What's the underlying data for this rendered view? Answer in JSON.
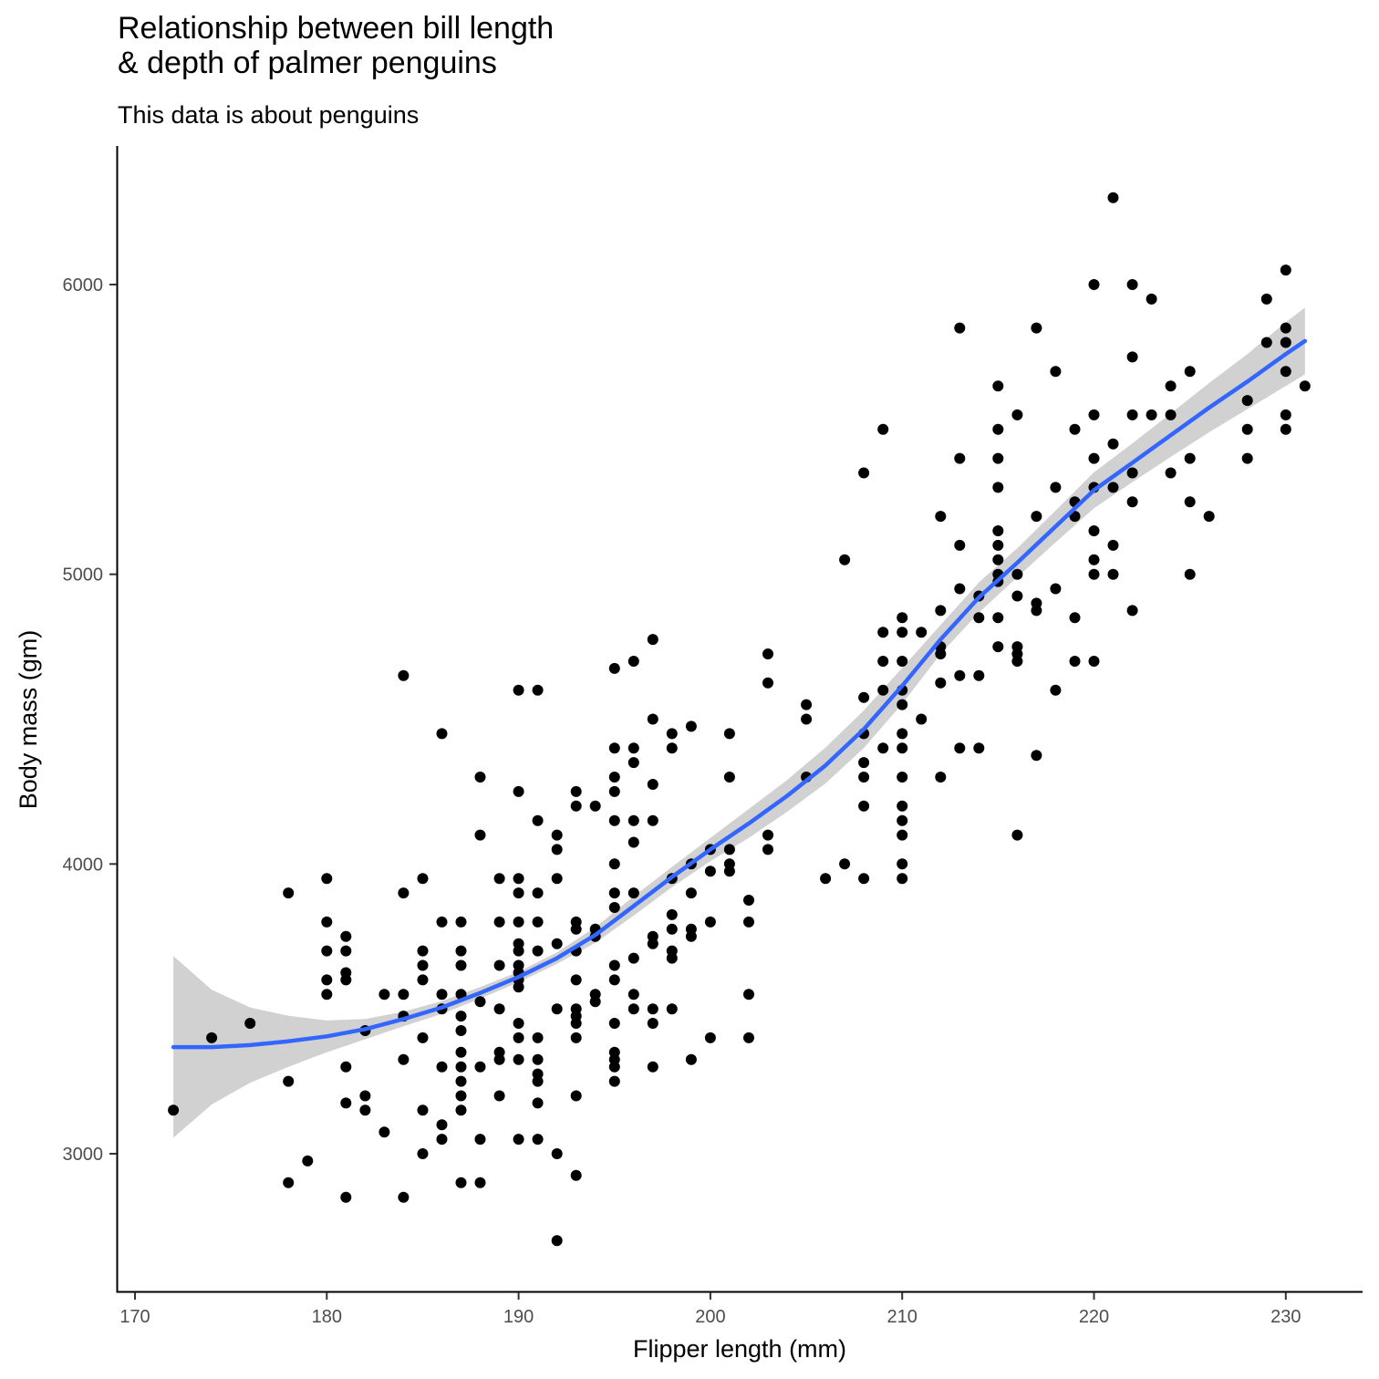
{
  "chart_data": {
    "type": "scatter",
    "title": "Relationship between bill length\n& depth of palmer penguins",
    "subtitle": "This data is about penguins",
    "xlabel": "Flipper length (mm)",
    "ylabel": "Body mass (gm)",
    "xlim": [
      169,
      234
    ],
    "ylim": [
      2550,
      6500
    ],
    "xticks": [
      170,
      180,
      190,
      200,
      210,
      220,
      230
    ],
    "yticks": [
      3000,
      4000,
      5000,
      6000
    ],
    "grid": false,
    "legend": "none",
    "colors": {
      "points": "#000000",
      "smooth": "#3366FF",
      "band": "#BEBEBE"
    },
    "points": [
      [
        172,
        3150
      ],
      [
        174,
        3400
      ],
      [
        176,
        3450
      ],
      [
        178,
        3900
      ],
      [
        178,
        3250
      ],
      [
        178,
        2900
      ],
      [
        179,
        2975
      ],
      [
        180,
        3950
      ],
      [
        180,
        3800
      ],
      [
        180,
        3700
      ],
      [
        180,
        3600
      ],
      [
        180,
        3550
      ],
      [
        181,
        3750
      ],
      [
        181,
        3700
      ],
      [
        181,
        3625
      ],
      [
        181,
        3600
      ],
      [
        181,
        3300
      ],
      [
        181,
        3175
      ],
      [
        181,
        2850
      ],
      [
        182,
        3425
      ],
      [
        182,
        3200
      ],
      [
        182,
        3150
      ],
      [
        183,
        3550
      ],
      [
        183,
        3075
      ],
      [
        184,
        4650
      ],
      [
        184,
        3900
      ],
      [
        184,
        3550
      ],
      [
        184,
        3475
      ],
      [
        184,
        3325
      ],
      [
        184,
        2850
      ],
      [
        185,
        3950
      ],
      [
        185,
        3700
      ],
      [
        185,
        3650
      ],
      [
        185,
        3600
      ],
      [
        185,
        3400
      ],
      [
        185,
        3150
      ],
      [
        185,
        3000
      ],
      [
        186,
        4450
      ],
      [
        186,
        3800
      ],
      [
        186,
        3550
      ],
      [
        186,
        3500
      ],
      [
        186,
        3300
      ],
      [
        186,
        3100
      ],
      [
        186,
        3050
      ],
      [
        187,
        3800
      ],
      [
        187,
        3700
      ],
      [
        187,
        3650
      ],
      [
        187,
        3550
      ],
      [
        187,
        3475
      ],
      [
        187,
        3425
      ],
      [
        187,
        3350
      ],
      [
        187,
        3300
      ],
      [
        187,
        3250
      ],
      [
        187,
        3200
      ],
      [
        187,
        3150
      ],
      [
        187,
        2900
      ],
      [
        188,
        4300
      ],
      [
        188,
        4100
      ],
      [
        188,
        3525
      ],
      [
        188,
        3300
      ],
      [
        188,
        3050
      ],
      [
        188,
        2900
      ],
      [
        189,
        3950
      ],
      [
        189,
        3800
      ],
      [
        189,
        3650
      ],
      [
        189,
        3500
      ],
      [
        189,
        3350
      ],
      [
        189,
        3325
      ],
      [
        189,
        3200
      ],
      [
        190,
        4600
      ],
      [
        190,
        4250
      ],
      [
        190,
        3950
      ],
      [
        190,
        3900
      ],
      [
        190,
        3800
      ],
      [
        190,
        3725
      ],
      [
        190,
        3700
      ],
      [
        190,
        3650
      ],
      [
        190,
        3625
      ],
      [
        190,
        3600
      ],
      [
        190,
        3575
      ],
      [
        190,
        3450
      ],
      [
        190,
        3400
      ],
      [
        190,
        3325
      ],
      [
        190,
        3050
      ],
      [
        191,
        4600
      ],
      [
        191,
        4150
      ],
      [
        191,
        3900
      ],
      [
        191,
        3800
      ],
      [
        191,
        3700
      ],
      [
        191,
        3400
      ],
      [
        191,
        3325
      ],
      [
        191,
        3275
      ],
      [
        191,
        3250
      ],
      [
        191,
        3175
      ],
      [
        191,
        3050
      ],
      [
        192,
        4100
      ],
      [
        192,
        4050
      ],
      [
        192,
        3950
      ],
      [
        192,
        3725
      ],
      [
        192,
        3500
      ],
      [
        192,
        3000
      ],
      [
        192,
        2700
      ],
      [
        193,
        4250
      ],
      [
        193,
        4200
      ],
      [
        193,
        3800
      ],
      [
        193,
        3775
      ],
      [
        193,
        3700
      ],
      [
        193,
        3600
      ],
      [
        193,
        3500
      ],
      [
        193,
        3475
      ],
      [
        193,
        3450
      ],
      [
        193,
        3400
      ],
      [
        193,
        3200
      ],
      [
        193,
        2925
      ],
      [
        194,
        4200
      ],
      [
        194,
        3775
      ],
      [
        194,
        3750
      ],
      [
        194,
        3550
      ],
      [
        194,
        3525
      ],
      [
        195,
        4675
      ],
      [
        195,
        4400
      ],
      [
        195,
        4300
      ],
      [
        195,
        4250
      ],
      [
        195,
        4150
      ],
      [
        195,
        4000
      ],
      [
        195,
        3900
      ],
      [
        195,
        3850
      ],
      [
        195,
        3650
      ],
      [
        195,
        3600
      ],
      [
        195,
        3450
      ],
      [
        195,
        3350
      ],
      [
        195,
        3325
      ],
      [
        195,
        3300
      ],
      [
        195,
        3250
      ],
      [
        196,
        4700
      ],
      [
        196,
        4400
      ],
      [
        196,
        4350
      ],
      [
        196,
        4150
      ],
      [
        196,
        4075
      ],
      [
        196,
        3900
      ],
      [
        196,
        3675
      ],
      [
        196,
        3550
      ],
      [
        196,
        3500
      ],
      [
        197,
        4775
      ],
      [
        197,
        4500
      ],
      [
        197,
        4275
      ],
      [
        197,
        4150
      ],
      [
        197,
        3750
      ],
      [
        197,
        3725
      ],
      [
        197,
        3500
      ],
      [
        197,
        3450
      ],
      [
        197,
        3300
      ],
      [
        198,
        4450
      ],
      [
        198,
        4400
      ],
      [
        198,
        3950
      ],
      [
        198,
        3825
      ],
      [
        198,
        3775
      ],
      [
        198,
        3700
      ],
      [
        198,
        3675
      ],
      [
        198,
        3500
      ],
      [
        199,
        4475
      ],
      [
        199,
        4000
      ],
      [
        199,
        3900
      ],
      [
        199,
        3775
      ],
      [
        199,
        3750
      ],
      [
        199,
        3325
      ],
      [
        200,
        4050
      ],
      [
        200,
        3975
      ],
      [
        200,
        3800
      ],
      [
        200,
        3400
      ],
      [
        201,
        4450
      ],
      [
        201,
        4300
      ],
      [
        201,
        4050
      ],
      [
        201,
        4000
      ],
      [
        201,
        3975
      ],
      [
        202,
        3875
      ],
      [
        202,
        3800
      ],
      [
        202,
        3550
      ],
      [
        202,
        3400
      ],
      [
        203,
        4725
      ],
      [
        203,
        4625
      ],
      [
        203,
        4100
      ],
      [
        203,
        4050
      ],
      [
        205,
        4550
      ],
      [
        205,
        4500
      ],
      [
        205,
        4300
      ],
      [
        206,
        3950
      ],
      [
        207,
        5050
      ],
      [
        207,
        4000
      ],
      [
        208,
        5350
      ],
      [
        208,
        4575
      ],
      [
        208,
        4450
      ],
      [
        208,
        4350
      ],
      [
        208,
        4300
      ],
      [
        208,
        4200
      ],
      [
        208,
        3950
      ],
      [
        209,
        5500
      ],
      [
        209,
        4800
      ],
      [
        209,
        4700
      ],
      [
        209,
        4600
      ],
      [
        209,
        4400
      ],
      [
        210,
        4850
      ],
      [
        210,
        4800
      ],
      [
        210,
        4700
      ],
      [
        210,
        4600
      ],
      [
        210,
        4550
      ],
      [
        210,
        4450
      ],
      [
        210,
        4400
      ],
      [
        210,
        4300
      ],
      [
        210,
        4200
      ],
      [
        210,
        4150
      ],
      [
        210,
        4100
      ],
      [
        210,
        4000
      ],
      [
        210,
        3950
      ],
      [
        211,
        4800
      ],
      [
        211,
        4500
      ],
      [
        212,
        5200
      ],
      [
        212,
        4875
      ],
      [
        212,
        4750
      ],
      [
        212,
        4725
      ],
      [
        212,
        4625
      ],
      [
        212,
        4300
      ],
      [
        213,
        5850
      ],
      [
        213,
        5400
      ],
      [
        213,
        5100
      ],
      [
        213,
        4950
      ],
      [
        213,
        4650
      ],
      [
        213,
        4400
      ],
      [
        214,
        4925
      ],
      [
        214,
        4850
      ],
      [
        214,
        4650
      ],
      [
        214,
        4400
      ],
      [
        215,
        5650
      ],
      [
        215,
        5500
      ],
      [
        215,
        5400
      ],
      [
        215,
        5300
      ],
      [
        215,
        5150
      ],
      [
        215,
        5100
      ],
      [
        215,
        5050
      ],
      [
        215,
        5000
      ],
      [
        215,
        4975
      ],
      [
        215,
        4850
      ],
      [
        215,
        4750
      ],
      [
        216,
        5550
      ],
      [
        216,
        5000
      ],
      [
        216,
        4925
      ],
      [
        216,
        4750
      ],
      [
        216,
        4725
      ],
      [
        216,
        4700
      ],
      [
        216,
        4100
      ],
      [
        217,
        5850
      ],
      [
        217,
        5200
      ],
      [
        217,
        4900
      ],
      [
        217,
        4875
      ],
      [
        217,
        4375
      ],
      [
        218,
        5700
      ],
      [
        218,
        5300
      ],
      [
        218,
        4950
      ],
      [
        218,
        4600
      ],
      [
        219,
        5500
      ],
      [
        219,
        5250
      ],
      [
        219,
        5200
      ],
      [
        219,
        4850
      ],
      [
        219,
        4700
      ],
      [
        220,
        6000
      ],
      [
        220,
        5550
      ],
      [
        220,
        5400
      ],
      [
        220,
        5300
      ],
      [
        220,
        5150
      ],
      [
        220,
        5050
      ],
      [
        220,
        5000
      ],
      [
        220,
        4700
      ],
      [
        221,
        6300
      ],
      [
        221,
        5450
      ],
      [
        221,
        5300
      ],
      [
        221,
        5100
      ],
      [
        221,
        5000
      ],
      [
        222,
        6000
      ],
      [
        222,
        5750
      ],
      [
        222,
        5550
      ],
      [
        222,
        5350
      ],
      [
        222,
        5250
      ],
      [
        222,
        4875
      ],
      [
        223,
        5950
      ],
      [
        223,
        5550
      ],
      [
        224,
        5650
      ],
      [
        224,
        5550
      ],
      [
        224,
        5350
      ],
      [
        225,
        5700
      ],
      [
        225,
        5400
      ],
      [
        225,
        5250
      ],
      [
        225,
        5000
      ],
      [
        226,
        5200
      ],
      [
        228,
        5600
      ],
      [
        228,
        5500
      ],
      [
        228,
        5400
      ],
      [
        229,
        5950
      ],
      [
        229,
        5800
      ],
      [
        230,
        6050
      ],
      [
        230,
        5850
      ],
      [
        230,
        5800
      ],
      [
        230,
        5700
      ],
      [
        230,
        5550
      ],
      [
        230,
        5500
      ],
      [
        231,
        5650
      ]
    ],
    "smooth": {
      "x": [
        172,
        174,
        176,
        178,
        180,
        182,
        184,
        186,
        188,
        190,
        192,
        194,
        196,
        198,
        200,
        202,
        204,
        206,
        208,
        210,
        212,
        214,
        216,
        218,
        220,
        222,
        224,
        226,
        228,
        230,
        231
      ],
      "y": [
        3368,
        3368,
        3375,
        3388,
        3405,
        3430,
        3465,
        3505,
        3555,
        3610,
        3675,
        3755,
        3855,
        3955,
        4050,
        4140,
        4235,
        4340,
        4465,
        4615,
        4775,
        4920,
        5040,
        5165,
        5290,
        5385,
        5480,
        5575,
        5665,
        5760,
        5805
      ],
      "lower": [
        3055,
        3170,
        3245,
        3300,
        3350,
        3395,
        3440,
        3483,
        3535,
        3592,
        3655,
        3728,
        3822,
        3920,
        4010,
        4090,
        4180,
        4278,
        4400,
        4553,
        4725,
        4868,
        4990,
        5110,
        5228,
        5318,
        5405,
        5490,
        5570,
        5650,
        5690
      ],
      "upper": [
        3682,
        3566,
        3505,
        3476,
        3460,
        3465,
        3490,
        3527,
        3575,
        3628,
        3695,
        3782,
        3888,
        3990,
        4090,
        4190,
        4290,
        4402,
        4530,
        4677,
        4825,
        4972,
        5090,
        5220,
        5352,
        5452,
        5555,
        5660,
        5760,
        5870,
        5920
      ]
    }
  }
}
